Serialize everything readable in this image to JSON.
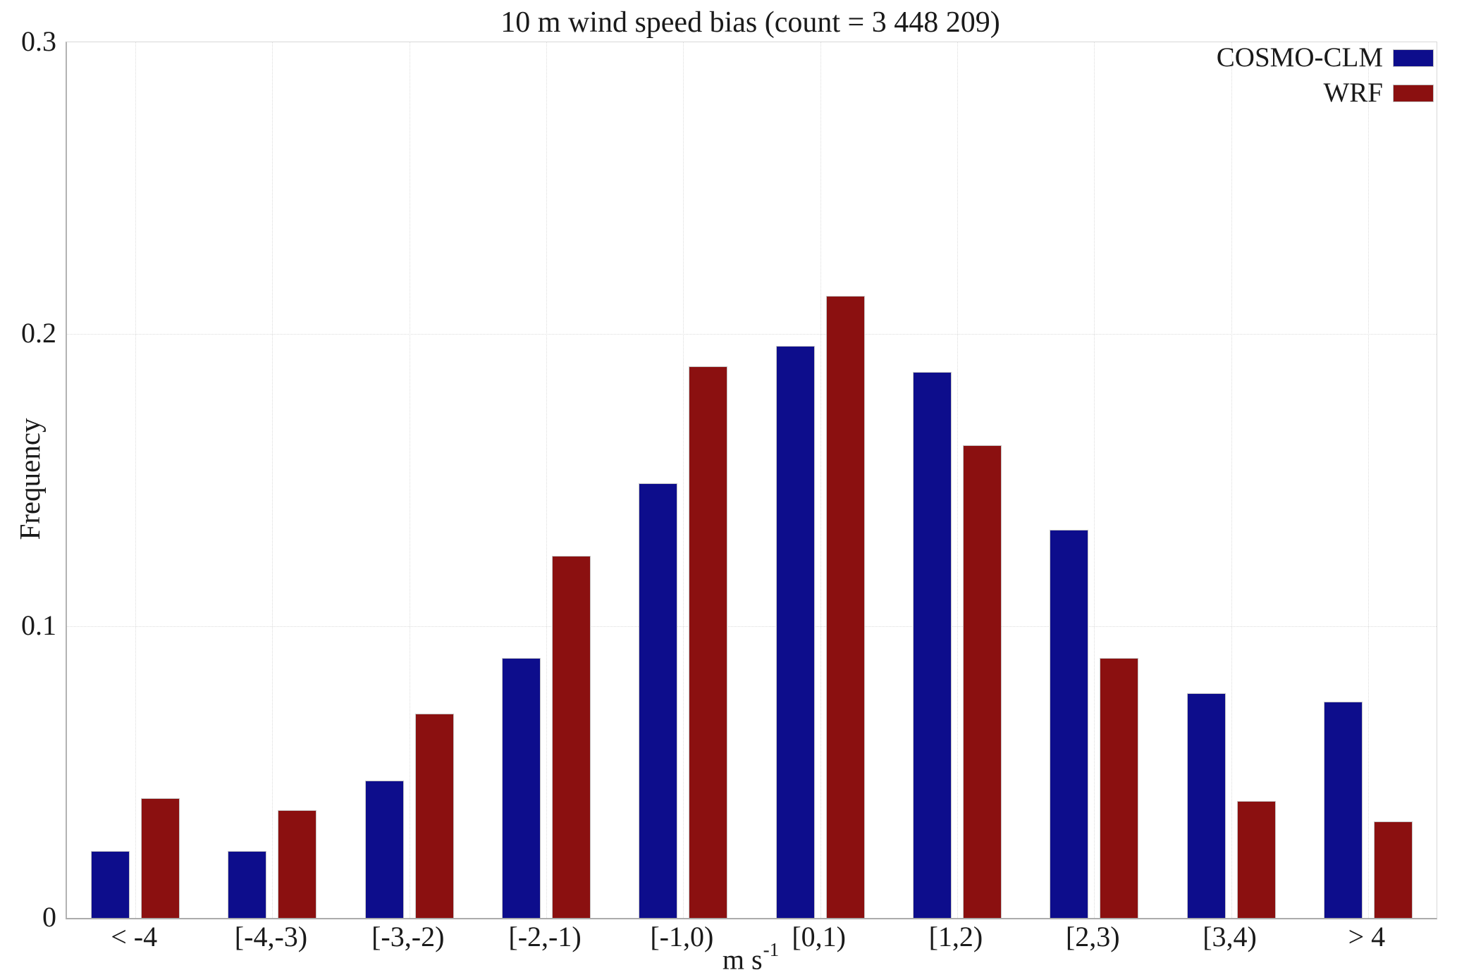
{
  "chart_data": {
    "type": "bar",
    "title": "10 m wind speed bias (count = 3 448 209)",
    "ylabel": "Frequency",
    "xlabel_base": "m s",
    "xlabel_exponent": "-1",
    "ylim": [
      0,
      0.3
    ],
    "yticks": [
      0,
      0.1,
      0.2,
      0.3
    ],
    "grid": "dotted horizontal lines at yticks, dotted vertical lines at category centers",
    "legend_position": "top-right inside plot, swatches right of labels",
    "categories": [
      "< -4",
      "[-4,-3)",
      "[-3,-2)",
      "[-2,-1)",
      "[-1,0)",
      "[0,1)",
      "[1,2)",
      "[2,3)",
      "[3,4)",
      "> 4"
    ],
    "series": [
      {
        "name": "COSMO-CLM",
        "color": "#0d0d8c",
        "values": [
          0.023,
          0.023,
          0.047,
          0.089,
          0.149,
          0.196,
          0.187,
          0.133,
          0.077,
          0.074
        ]
      },
      {
        "name": "WRF",
        "color": "#8b1010",
        "values": [
          0.041,
          0.037,
          0.07,
          0.124,
          0.189,
          0.213,
          0.162,
          0.089,
          0.04,
          0.033
        ]
      }
    ]
  },
  "colors": {
    "background": "#ffffff",
    "axis": "#ababab",
    "gridline": "#dcdcdc",
    "text": "#1a1a1a",
    "bar_edge": "#c6c6c6"
  }
}
